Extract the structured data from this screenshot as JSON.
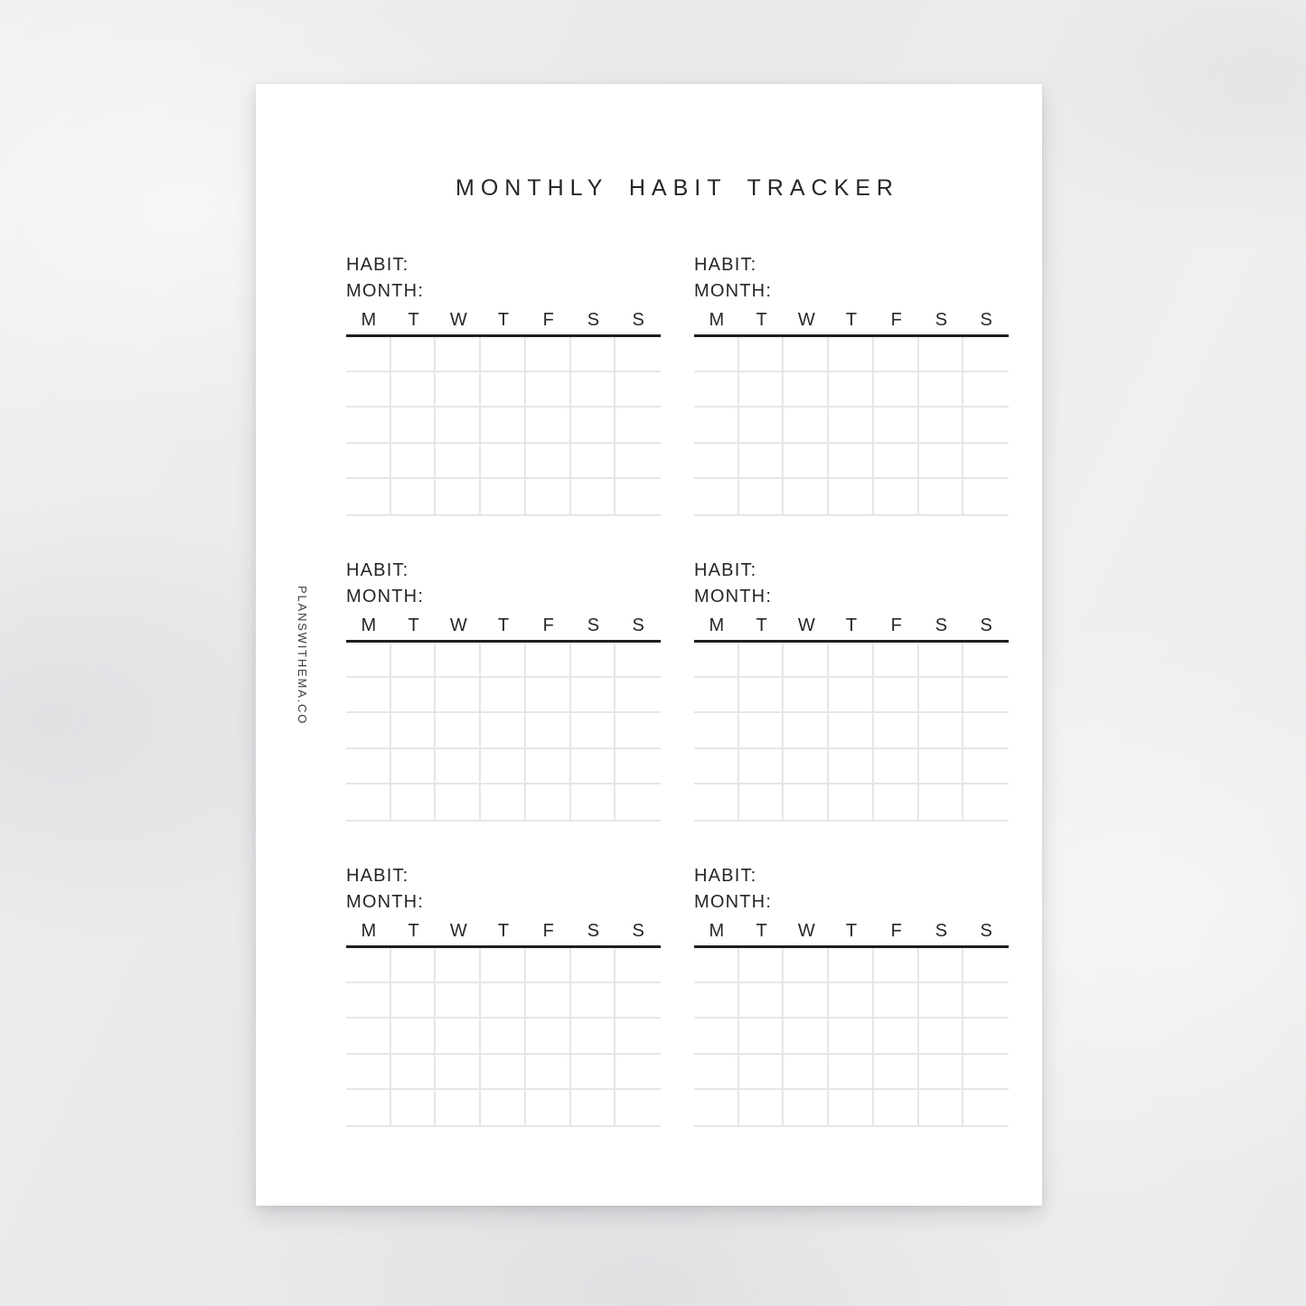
{
  "title": "MONTHLY HABIT TRACKER",
  "watermark": "PLANSWITHEMA.CO",
  "tracker": {
    "habit_label": "HABIT:",
    "month_label": "MONTH:",
    "days": [
      "M",
      "T",
      "W",
      "T",
      "F",
      "S",
      "S"
    ],
    "grid_rows": 5,
    "grid_cols": 7,
    "block_count": 6
  },
  "colors": {
    "backdrop": "#ebeced",
    "sheet": "#ffffff",
    "text": "#262626",
    "rule": "#1e1e1e",
    "grid_line": "#e6e6e7",
    "watermark_text": "#3c3c3c"
  }
}
